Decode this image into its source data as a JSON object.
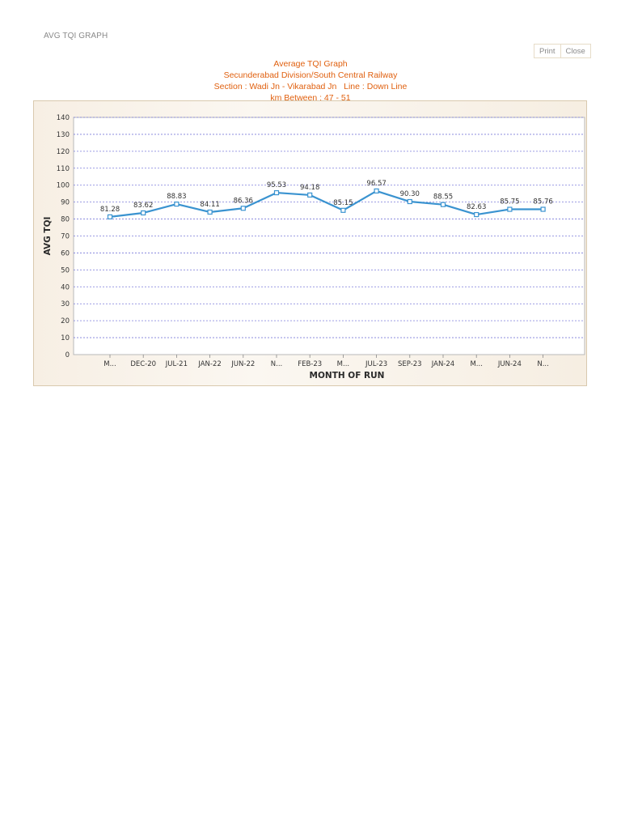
{
  "page": {
    "heading": "AVG TQI GRAPH"
  },
  "toolbar": {
    "print_label": "Print",
    "close_label": "Close"
  },
  "colors": {
    "title": "#e0600f",
    "series": "#3a93d0",
    "grid": "#7b7bd9",
    "frame_border": "#d9c9ae"
  },
  "chart_data": {
    "type": "line",
    "title_lines": [
      "Average TQI Graph",
      "Secunderabad Division/South Central Railway",
      "Section : Wadi Jn - Vikarabad Jn   Line : Down Line",
      "km Between : 47 - 51"
    ],
    "xlabel": "MONTH OF RUN",
    "ylabel": "AVG TQI",
    "ylim": [
      0,
      140
    ],
    "yticks": [
      0,
      10,
      20,
      30,
      40,
      50,
      60,
      70,
      80,
      90,
      100,
      110,
      120,
      130,
      140
    ],
    "grid": true,
    "legend": "none",
    "categories": [
      "M...",
      "DEC-20",
      "JUL-21",
      "JAN-22",
      "JUN-22",
      "N...",
      "FEB-23",
      "M...",
      "JUL-23",
      "SEP-23",
      "JAN-24",
      "M...",
      "JUN-24",
      "N..."
    ],
    "series": [
      {
        "values": [
          81.28,
          83.62,
          88.83,
          84.11,
          86.36,
          95.53,
          94.18,
          85.15,
          96.57,
          90.3,
          88.55,
          82.63,
          85.75,
          85.76
        ],
        "labels": [
          "81.28",
          "83.62",
          "88.83",
          "84.11",
          "86.36",
          "95.53",
          "94.18",
          "85.15",
          "96.57",
          "90.30",
          "88.55",
          "82.63",
          "85.75",
          "85.76"
        ]
      }
    ]
  }
}
